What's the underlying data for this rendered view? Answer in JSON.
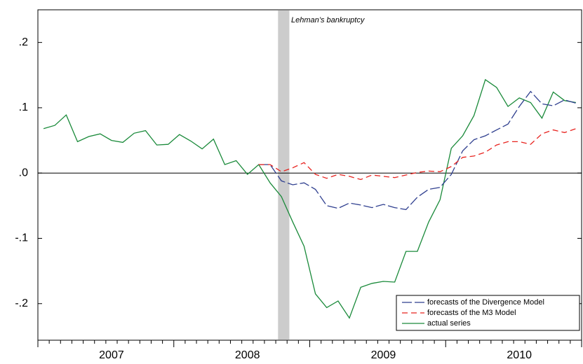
{
  "chart_data": {
    "type": "line",
    "annotation": "Lehman’s bankruptcy",
    "shade_x": [
      20.7,
      21.7
    ],
    "categories": [
      null,
      null,
      null,
      null,
      null,
      null,
      "2007",
      null,
      null,
      null,
      null,
      null,
      null,
      null,
      null,
      null,
      null,
      null,
      "2008",
      null,
      null,
      null,
      null,
      null,
      null,
      null,
      null,
      null,
      null,
      null,
      "2009",
      null,
      null,
      null,
      null,
      null,
      null,
      null,
      null,
      null,
      null,
      null,
      "2010",
      null,
      null,
      null,
      null,
      null
    ],
    "series": [
      {
        "name": "forecasts of the Divergence Model",
        "color": "#2f3f8f",
        "dash": "long",
        "values": [
          null,
          null,
          null,
          null,
          null,
          null,
          null,
          null,
          null,
          null,
          null,
          null,
          null,
          null,
          null,
          null,
          null,
          null,
          null,
          0.013,
          0.013,
          -0.012,
          -0.018,
          -0.015,
          -0.025,
          -0.05,
          -0.054,
          -0.046,
          -0.049,
          -0.053,
          -0.048,
          -0.053,
          -0.056,
          -0.037,
          -0.025,
          -0.022,
          -0.002,
          0.034,
          0.051,
          0.057,
          0.066,
          0.075,
          0.102,
          0.125,
          0.106,
          0.103,
          0.112,
          0.107
        ]
      },
      {
        "name": "forecasts of the M3 Model",
        "color": "#e8231f",
        "dash": "short",
        "values": [
          null,
          null,
          null,
          null,
          null,
          null,
          null,
          null,
          null,
          null,
          null,
          null,
          null,
          null,
          null,
          null,
          null,
          null,
          null,
          0.013,
          0.013,
          0.002,
          0.008,
          0.016,
          -0.002,
          -0.008,
          -0.002,
          -0.005,
          -0.01,
          -0.003,
          -0.005,
          -0.007,
          -0.003,
          0.001,
          0.003,
          0.002,
          0.01,
          0.024,
          0.026,
          0.032,
          0.043,
          0.048,
          0.048,
          0.044,
          0.06,
          0.066,
          0.062,
          0.068
        ]
      },
      {
        "name": "actual series",
        "color": "#1a8a3a",
        "dash": "solid",
        "values": [
          0.068,
          0.073,
          0.089,
          0.048,
          0.056,
          0.06,
          0.05,
          0.047,
          0.061,
          0.065,
          0.043,
          0.044,
          0.059,
          0.049,
          0.037,
          0.052,
          0.013,
          0.019,
          -0.002,
          0.013,
          -0.015,
          -0.036,
          -0.075,
          -0.112,
          -0.185,
          -0.206,
          -0.196,
          -0.222,
          -0.175,
          -0.169,
          -0.166,
          -0.167,
          -0.12,
          -0.12,
          -0.075,
          -0.041,
          0.038,
          0.057,
          0.088,
          0.143,
          0.131,
          0.102,
          0.115,
          0.108,
          0.084,
          0.124,
          0.111,
          0.108
        ]
      }
    ],
    "ylim": [
      -0.256,
      0.25
    ],
    "yticks": [
      {
        "value": -0.2,
        "label": "-.2"
      },
      {
        "value": -0.1,
        "label": "-.1"
      },
      {
        "value": 0,
        "label": ".0"
      },
      {
        "value": 0.1,
        "label": ".1"
      },
      {
        "value": 0.2,
        "label": ".2"
      }
    ],
    "zero_line": true,
    "grid": false,
    "legend": "lower right"
  }
}
